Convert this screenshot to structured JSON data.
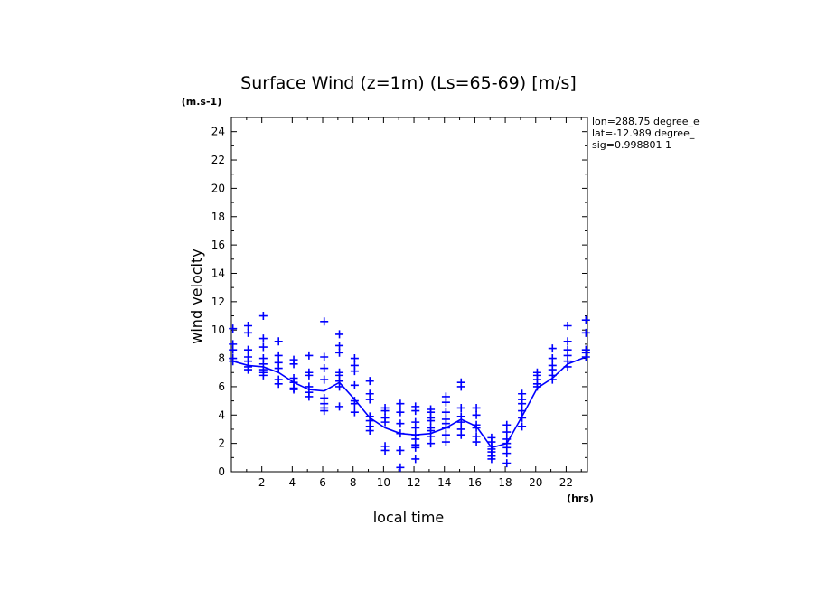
{
  "chart_data": {
    "type": "scatter",
    "title": "Surface Wind (z=1m) (Ls=65-69) [m/s]",
    "xlabel": "local time",
    "xunit": "(hrs)",
    "ylabel": "wind velocity",
    "yunit": "(m.s-1)",
    "xlim": [
      0,
      23.4
    ],
    "ylim": [
      0,
      25
    ],
    "x_ticks": [
      2,
      4,
      6,
      8,
      10,
      12,
      14,
      16,
      18,
      20,
      22
    ],
    "y_ticks": [
      0,
      2,
      4,
      6,
      8,
      10,
      12,
      14,
      16,
      18,
      20,
      22,
      24
    ],
    "info_lines": [
      "lon=288.75 degree_e",
      "lat=-12.989 degree_",
      "sig=0.998801 1"
    ],
    "series_color": "#0000ff",
    "mean_line": {
      "x": [
        0.1,
        1.1,
        2.1,
        3.1,
        4.1,
        5.1,
        6.1,
        7.1,
        8.1,
        9.1,
        10.1,
        11.1,
        12.1,
        13.1,
        14.1,
        15.1,
        16.1,
        17.1,
        18.1,
        19.1,
        20.1,
        21.1,
        22.1,
        23.3
      ],
      "y": [
        7.8,
        7.5,
        7.4,
        7.0,
        6.3,
        5.8,
        5.7,
        6.3,
        5.1,
        3.8,
        3.1,
        2.7,
        2.6,
        2.7,
        3.1,
        3.7,
        3.2,
        1.7,
        2.0,
        3.9,
        5.9,
        6.6,
        7.6,
        8.1
      ]
    },
    "points": [
      {
        "x": 0.1,
        "y": [
          10.1,
          9.0,
          8.6,
          8.0,
          7.8
        ]
      },
      {
        "x": 1.1,
        "y": [
          10.3,
          9.8,
          8.6,
          8.1,
          7.8,
          7.4,
          7.2
        ]
      },
      {
        "x": 2.1,
        "y": [
          11.0,
          9.4,
          8.8,
          8.0,
          7.6,
          7.2,
          7.0,
          6.8
        ]
      },
      {
        "x": 3.1,
        "y": [
          9.2,
          8.2,
          7.7,
          7.3,
          6.5,
          6.2
        ]
      },
      {
        "x": 4.1,
        "y": [
          7.9,
          7.6,
          6.6,
          6.3,
          5.9,
          5.8
        ]
      },
      {
        "x": 5.1,
        "y": [
          8.2,
          7.0,
          6.8,
          6.0,
          5.6,
          5.3
        ]
      },
      {
        "x": 6.1,
        "y": [
          10.6,
          8.1,
          7.3,
          6.5,
          5.2,
          4.8,
          4.5,
          4.3
        ]
      },
      {
        "x": 7.1,
        "y": [
          9.7,
          8.9,
          8.4,
          7.0,
          6.8,
          6.4,
          6.0,
          4.6
        ]
      },
      {
        "x": 8.1,
        "y": [
          8.0,
          7.5,
          7.1,
          6.1,
          5.0,
          4.8,
          4.2
        ]
      },
      {
        "x": 9.1,
        "y": [
          6.4,
          5.5,
          5.1,
          3.9,
          3.6,
          3.2,
          2.9
        ]
      },
      {
        "x": 10.1,
        "y": [
          4.5,
          4.3,
          3.8,
          3.5,
          1.8,
          1.5
        ]
      },
      {
        "x": 11.1,
        "y": [
          4.8,
          4.2,
          3.4,
          2.7,
          1.5,
          0.3
        ]
      },
      {
        "x": 12.1,
        "y": [
          4.6,
          4.3,
          3.5,
          3.1,
          2.6,
          2.3,
          1.9,
          1.7,
          0.9
        ]
      },
      {
        "x": 13.1,
        "y": [
          4.4,
          4.2,
          3.8,
          3.6,
          3.1,
          2.9,
          2.5,
          2.0
        ]
      },
      {
        "x": 14.1,
        "y": [
          5.3,
          4.9,
          4.2,
          3.7,
          3.4,
          3.1,
          2.6,
          2.1
        ]
      },
      {
        "x": 15.1,
        "y": [
          6.3,
          6.0,
          4.5,
          3.9,
          3.5,
          3.0,
          2.6
        ]
      },
      {
        "x": 16.1,
        "y": [
          4.5,
          4.0,
          3.3,
          3.1,
          2.5,
          2.1
        ]
      },
      {
        "x": 17.1,
        "y": [
          2.4,
          2.1,
          1.8,
          1.6,
          1.4,
          1.1,
          0.9
        ]
      },
      {
        "x": 18.1,
        "y": [
          3.3,
          2.8,
          2.3,
          2.0,
          1.7,
          1.3,
          0.6
        ]
      },
      {
        "x": 19.1,
        "y": [
          5.5,
          5.1,
          4.8,
          4.3,
          3.8,
          3.2
        ]
      },
      {
        "x": 20.1,
        "y": [
          7.0,
          6.8,
          6.5,
          6.2,
          6.0
        ]
      },
      {
        "x": 21.1,
        "y": [
          8.7,
          8.0,
          7.5,
          7.2,
          6.8,
          6.5
        ]
      },
      {
        "x": 22.1,
        "y": [
          10.3,
          9.2,
          8.6,
          8.2,
          7.8,
          7.4
        ]
      },
      {
        "x": 23.3,
        "y": [
          10.7,
          9.8,
          8.6,
          8.4,
          8.1
        ]
      }
    ]
  }
}
